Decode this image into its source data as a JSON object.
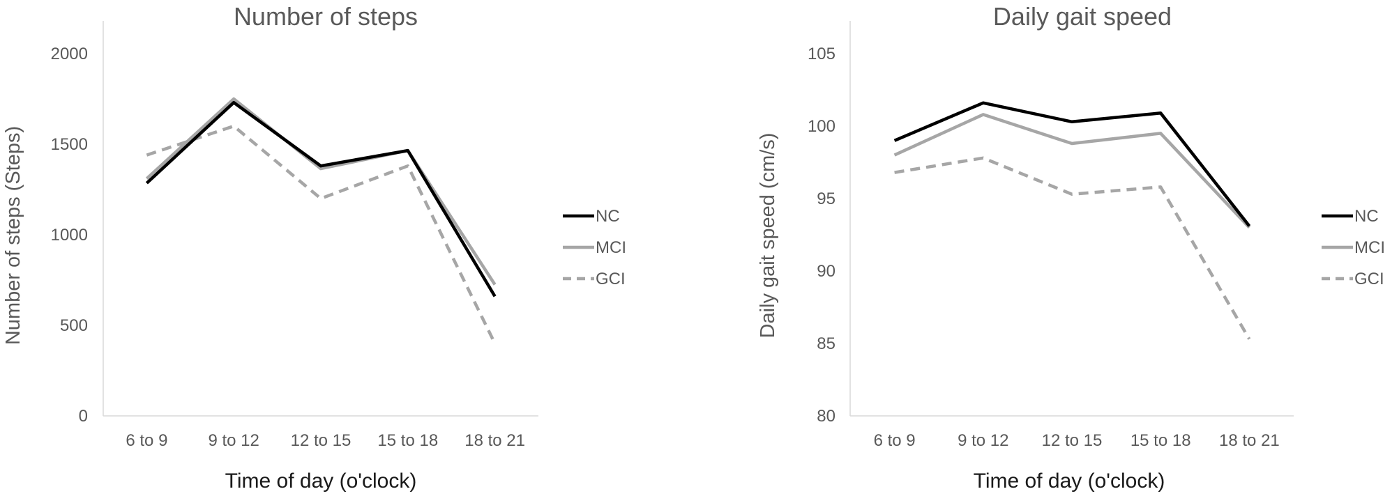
{
  "chart_data": [
    {
      "type": "line",
      "title": "Number of steps",
      "xlabel": "Time of day (o'clock)",
      "ylabel": "Number of steps (Steps)",
      "categories": [
        "6 to 9",
        "9 to 12",
        "12 to 15",
        "15 to 18",
        "18 to 21"
      ],
      "ylim": [
        0,
        2000
      ],
      "yticks": [
        "0",
        "500",
        "1000",
        "1500",
        "2000"
      ],
      "grid": false,
      "legend_position": "right",
      "series": [
        {
          "name": "NC",
          "values": [
            1285,
            1730,
            1380,
            1465,
            660
          ],
          "color": "#000000",
          "style": "solid"
        },
        {
          "name": "MCI",
          "values": [
            1310,
            1750,
            1365,
            1465,
            725
          ],
          "color": "#a6a6a6",
          "style": "solid"
        },
        {
          "name": "GCI",
          "values": [
            1440,
            1600,
            1200,
            1380,
            400
          ],
          "color": "#a6a6a6",
          "style": "dashed"
        }
      ]
    },
    {
      "type": "line",
      "title": "Daily gait speed",
      "xlabel": "Time of day (o'clock)",
      "ylabel": "Daily gait speed (cm/s)",
      "categories": [
        "6 to 9",
        "9 to 12",
        "12 to 15",
        "15 to 18",
        "18 to 21"
      ],
      "ylim": [
        80,
        105
      ],
      "yticks": [
        "80",
        "85",
        "90",
        "95",
        "100",
        "105"
      ],
      "grid": false,
      "legend_position": "right",
      "series": [
        {
          "name": "NC",
          "values": [
            99.0,
            101.6,
            100.3,
            100.9,
            93.1
          ],
          "color": "#000000",
          "style": "solid"
        },
        {
          "name": "MCI",
          "values": [
            98.0,
            100.8,
            98.8,
            99.5,
            93.0
          ],
          "color": "#a6a6a6",
          "style": "solid"
        },
        {
          "name": "GCI",
          "values": [
            96.8,
            97.8,
            95.3,
            95.8,
            85.3
          ],
          "color": "#a6a6a6",
          "style": "dashed"
        }
      ]
    }
  ]
}
